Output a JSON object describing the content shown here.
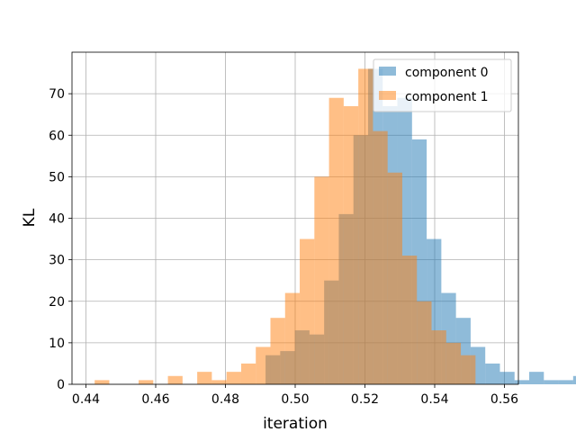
{
  "chart_data": {
    "type": "histogram",
    "title": "",
    "xlabel": "iteration",
    "ylabel": "KL",
    "xlim": [
      0.436,
      0.564
    ],
    "ylim": [
      0,
      80
    ],
    "xticks": [
      "0.44",
      "0.46",
      "0.48",
      "0.50",
      "0.52",
      "0.54",
      "0.56"
    ],
    "yticks": [
      "0",
      "10",
      "20",
      "30",
      "40",
      "50",
      "60",
      "70"
    ],
    "grid": true,
    "legend_position": "top-right",
    "series": [
      {
        "name": "component 0",
        "color": "#1f77b4",
        "opacity": 0.5,
        "bin_start": 0.4915,
        "bin_width": 0.0042,
        "counts": [
          7,
          8,
          13,
          12,
          25,
          41,
          60,
          76,
          67,
          69,
          59,
          35,
          22,
          16,
          9,
          5,
          3,
          1,
          3,
          1,
          1,
          2,
          0,
          1,
          0,
          1
        ]
      },
      {
        "name": "component 1",
        "color": "#ff7f0e",
        "opacity": 0.5,
        "bin_start": 0.4425,
        "bin_width": 0.0042,
        "counts": [
          1,
          0,
          0,
          1,
          0,
          2,
          0,
          3,
          1,
          3,
          5,
          9,
          16,
          22,
          35,
          50,
          69,
          67,
          76,
          61,
          51,
          31,
          20,
          13,
          10,
          7
        ]
      }
    ]
  }
}
